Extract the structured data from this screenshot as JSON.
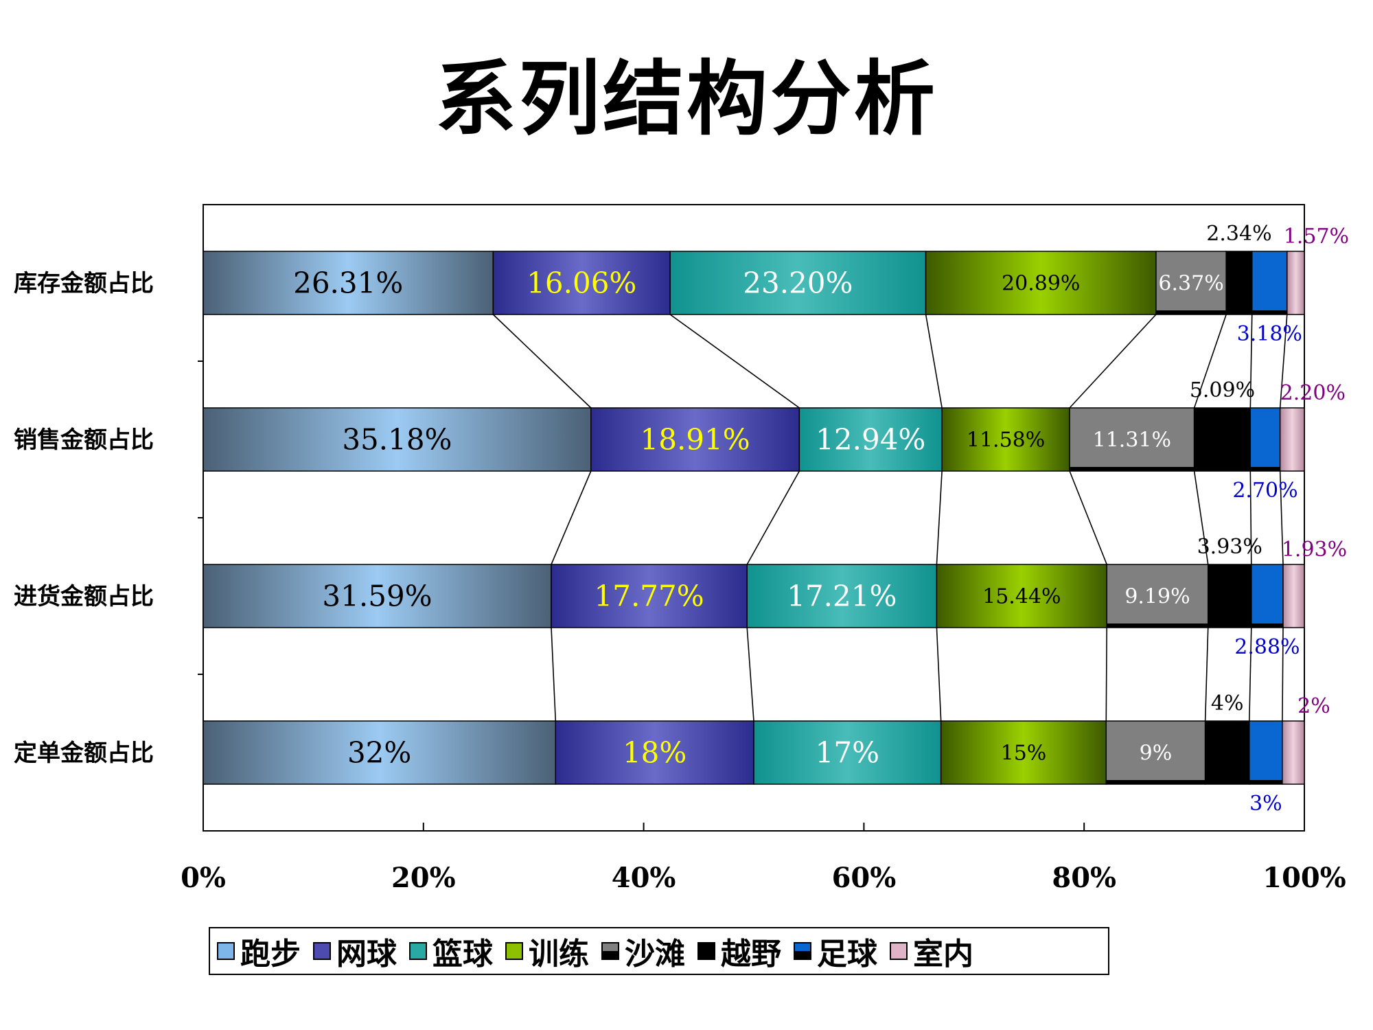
{
  "chart_data": {
    "type": "bar",
    "orientation": "horizontal",
    "stacked": "percent",
    "title": "系列结构分析",
    "categories": [
      "库存金额占比",
      "销售金额占比",
      "进货金额占比",
      "定单金额占比"
    ],
    "xlim": [
      0,
      100
    ],
    "x_ticks": [
      "0%",
      "20%",
      "40%",
      "60%",
      "80%",
      "100%"
    ],
    "legend_position": "bottom",
    "series": [
      {
        "name": "跑步",
        "values": [
          26.31,
          35.18,
          31.59,
          32
        ],
        "labels": [
          "26.31%",
          "35.18%",
          "31.59%",
          "32%"
        ]
      },
      {
        "name": "网球",
        "values": [
          16.06,
          18.91,
          17.77,
          18
        ],
        "labels": [
          "16.06%",
          "18.91%",
          "17.77%",
          "18%"
        ]
      },
      {
        "name": "篮球",
        "values": [
          23.2,
          12.94,
          17.21,
          17
        ],
        "labels": [
          "23.20%",
          "12.94%",
          "17.21%",
          "17%"
        ]
      },
      {
        "name": "训练",
        "values": [
          20.89,
          11.58,
          15.44,
          15
        ],
        "labels": [
          "20.89%",
          "11.58%",
          "15.44%",
          "15%"
        ]
      },
      {
        "name": "沙滩",
        "values": [
          6.37,
          11.31,
          9.19,
          9
        ],
        "labels": [
          "6.37%",
          "11.31%",
          "9.19%",
          "9%"
        ]
      },
      {
        "name": "越野",
        "values": [
          2.34,
          5.09,
          3.93,
          4
        ],
        "labels": [
          "2.34%",
          "5.09%",
          "3.93%",
          "4%"
        ]
      },
      {
        "name": "足球",
        "values": [
          3.18,
          2.7,
          2.88,
          3
        ],
        "labels": [
          "3.18%",
          "2.70%",
          "2.88%",
          "3%"
        ]
      },
      {
        "name": "室内",
        "values": [
          1.57,
          2.2,
          1.93,
          2
        ],
        "labels": [
          "1.57%",
          "2.20%",
          "1.93%",
          "2%"
        ]
      }
    ],
    "colors": {
      "跑步": "#7eb6ea",
      "网球": "#4d4ab0",
      "篮球": "#2aa8a4",
      "训练": "#8cc000",
      "沙滩": "#808080",
      "越野": "#000000",
      "足球": "#0a66d0",
      "室内": "#e0b4c6"
    },
    "label_colors": {
      "跑步": "#000000",
      "网球": "#ffff00",
      "篮球": "#ffffff",
      "训练": "#000000",
      "沙滩": "#ffffff",
      "越野": "#000000",
      "足球": "#0000cc",
      "室内": "#800080"
    },
    "connector_lines": true
  }
}
